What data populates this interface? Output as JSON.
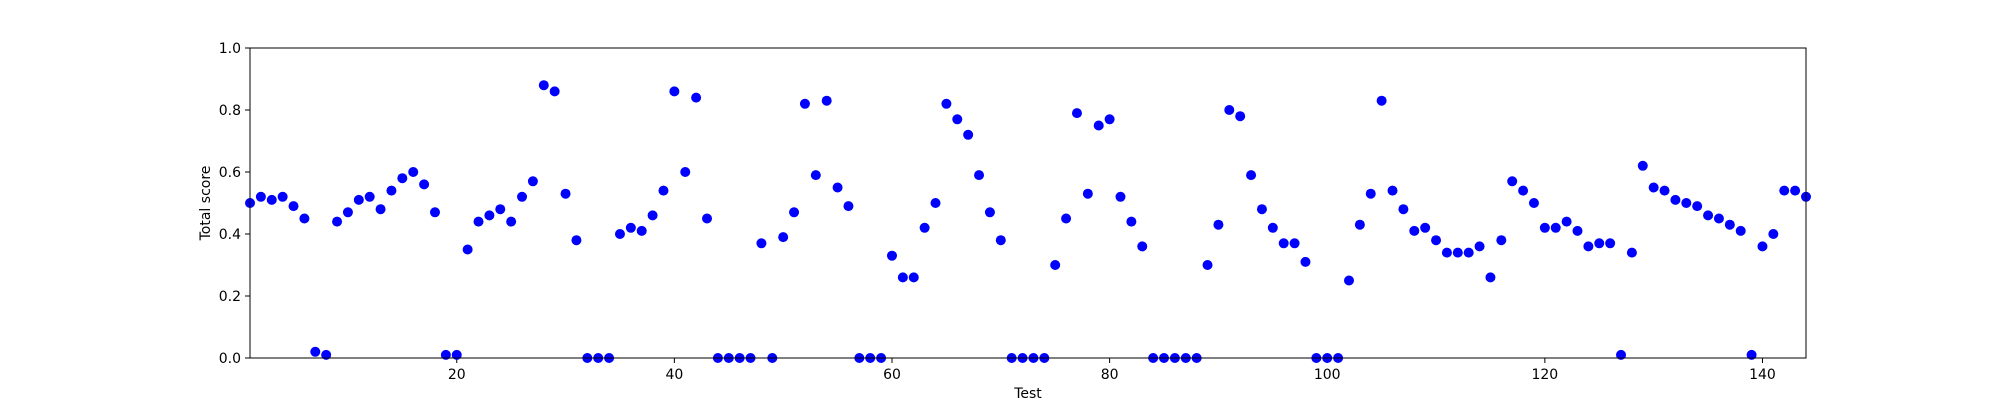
{
  "chart_data": {
    "type": "scatter",
    "title": "",
    "xlabel": "Test",
    "ylabel": "Total score",
    "xlim": [
      1,
      144
    ],
    "ylim": [
      0.0,
      1.0
    ],
    "xticks": [
      20,
      40,
      60,
      80,
      100,
      120,
      140
    ],
    "yticks": [
      0.0,
      0.2,
      0.4,
      0.6,
      0.8,
      1.0
    ],
    "xtick_labels": [
      "20",
      "40",
      "60",
      "80",
      "100",
      "120",
      "140"
    ],
    "ytick_labels": [
      "0.0",
      "0.2",
      "0.4",
      "0.6",
      "0.8",
      "1.0"
    ],
    "grid": false,
    "legend": null,
    "marker_color": "#0000ff",
    "series": [
      {
        "x": [
          1,
          2,
          3,
          4,
          5,
          6,
          7,
          8,
          9,
          10,
          11,
          12,
          13,
          14,
          15,
          16,
          17,
          18,
          19,
          20,
          21,
          22,
          23,
          24,
          25,
          26,
          27,
          28,
          29,
          30,
          31,
          32,
          33,
          34,
          35,
          36,
          37,
          38,
          39,
          40,
          41,
          42,
          43,
          44,
          45,
          46,
          47,
          48,
          49,
          50,
          51,
          52,
          53,
          54,
          55,
          56,
          57,
          58,
          59,
          60,
          61,
          62,
          63,
          64,
          65,
          66,
          67,
          68,
          69,
          70,
          71,
          72,
          73,
          74,
          75,
          76,
          77,
          78,
          79,
          80,
          81,
          82,
          83,
          84,
          85,
          86,
          87,
          88,
          89,
          90,
          91,
          92,
          93,
          94,
          95,
          96,
          97,
          98,
          99,
          100,
          101,
          102,
          103,
          104,
          105,
          106,
          107,
          108,
          109,
          110,
          111,
          112,
          113,
          114,
          115,
          116,
          117,
          118,
          119,
          120,
          121,
          122,
          123,
          124,
          125,
          126,
          127,
          128,
          129,
          130,
          131,
          132,
          133,
          134,
          135,
          136,
          137,
          138,
          139,
          140,
          141,
          142,
          143,
          144
        ],
        "values": [
          0.5,
          0.52,
          0.51,
          0.52,
          0.49,
          0.45,
          0.02,
          0.01,
          0.44,
          0.47,
          0.51,
          0.52,
          0.48,
          0.54,
          0.58,
          0.6,
          0.56,
          0.47,
          0.01,
          0.01,
          0.35,
          0.44,
          0.46,
          0.48,
          0.44,
          0.52,
          0.57,
          0.88,
          0.86,
          0.53,
          0.38,
          0.0,
          0.0,
          0.0,
          0.4,
          0.42,
          0.41,
          0.46,
          0.54,
          0.86,
          0.6,
          0.84,
          0.45,
          0.0,
          0.0,
          0.0,
          0.0,
          0.37,
          0.0,
          0.39,
          0.47,
          0.82,
          0.59,
          0.83,
          0.55,
          0.49,
          0.0,
          0.0,
          0.0,
          0.33,
          0.26,
          0.26,
          0.42,
          0.5,
          0.82,
          0.77,
          0.72,
          0.59,
          0.47,
          0.38,
          0.0,
          0.0,
          0.0,
          0.0,
          0.3,
          0.45,
          0.79,
          0.53,
          0.75,
          0.77,
          0.52,
          0.44,
          0.36,
          0.0,
          0.0,
          0.0,
          0.0,
          0.0,
          0.3,
          0.43,
          0.8,
          0.78,
          0.59,
          0.48,
          0.42,
          0.37,
          0.37,
          0.31,
          0.0,
          0.0,
          0.0,
          0.25,
          0.43,
          0.53,
          0.83,
          0.54,
          0.48,
          0.41,
          0.42,
          0.38,
          0.34,
          0.34,
          0.34,
          0.36,
          0.26,
          0.38,
          0.57,
          0.54,
          0.5,
          0.42,
          0.42,
          0.44,
          0.41,
          0.36,
          0.37,
          0.37,
          0.01,
          0.34,
          0.62,
          0.55,
          0.54,
          0.51,
          0.5,
          0.49,
          0.46,
          0.45,
          0.43,
          0.41,
          0.01,
          0.36,
          0.4,
          0.54,
          0.54,
          0.52
        ]
      }
    ]
  }
}
